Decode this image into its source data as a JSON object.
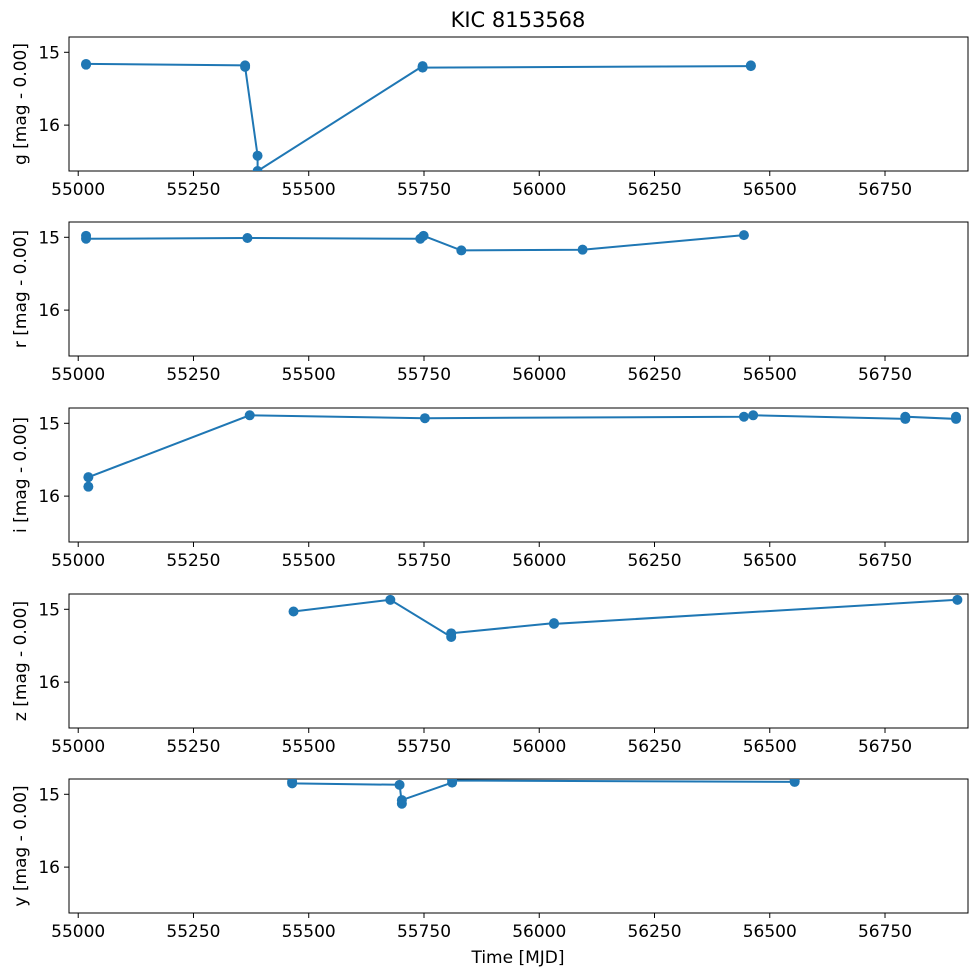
{
  "chart_data": {
    "type": "scatter",
    "title": "KIC 8153568",
    "xlabel": "Time [MJD]",
    "xlim": [
      54980,
      56930
    ],
    "xticks": [
      55000,
      55250,
      55500,
      55750,
      56000,
      56250,
      56500,
      56750
    ],
    "ylim_inverted": [
      16.63,
      14.79
    ],
    "yticks": [
      15,
      16
    ],
    "line_color": "#1f77b4",
    "marker": "circle",
    "grid": false,
    "panels": [
      {
        "band": "g",
        "ylabel": "g [mag - 0.00]",
        "points": [
          [
            55017,
            15.17
          ],
          [
            55017,
            15.16
          ],
          [
            55362,
            15.18
          ],
          [
            55362,
            15.2
          ],
          [
            55389,
            16.42
          ],
          [
            55389,
            16.63
          ],
          [
            55747,
            15.19
          ],
          [
            55747,
            15.21
          ],
          [
            56459,
            15.19
          ],
          [
            56459,
            15.18
          ]
        ]
      },
      {
        "band": "r",
        "ylabel": "r [mag - 0.00]",
        "points": [
          [
            55017,
            14.98
          ],
          [
            55017,
            15.02
          ],
          [
            55367,
            15.01
          ],
          [
            55742,
            15.02
          ],
          [
            55749,
            14.98
          ],
          [
            55831,
            15.18
          ],
          [
            56094,
            15.17
          ],
          [
            56444,
            14.97
          ]
        ]
      },
      {
        "band": "i",
        "ylabel": "i [mag - 0.00]",
        "points": [
          [
            55022,
            15.87
          ],
          [
            55022,
            15.74
          ],
          [
            55372,
            14.89
          ],
          [
            55752,
            14.93
          ],
          [
            56444,
            14.91
          ],
          [
            56464,
            14.89
          ],
          [
            56794,
            14.94
          ],
          [
            56794,
            14.91
          ],
          [
            56904,
            14.94
          ],
          [
            56904,
            14.91
          ]
        ]
      },
      {
        "band": "z",
        "ylabel": "z [mag - 0.00]",
        "points": [
          [
            55467,
            15.03
          ],
          [
            55677,
            14.87
          ],
          [
            55809,
            15.38
          ],
          [
            55809,
            15.33
          ],
          [
            56032,
            15.19
          ],
          [
            56032,
            15.2
          ],
          [
            56907,
            14.87
          ]
        ]
      },
      {
        "band": "y",
        "ylabel": "y [mag - 0.00]",
        "points": [
          [
            55464,
            14.83
          ],
          [
            55464,
            14.85
          ],
          [
            55697,
            14.87
          ],
          [
            55702,
            15.13
          ],
          [
            55702,
            15.08
          ],
          [
            55811,
            14.84
          ],
          [
            55811,
            14.81
          ],
          [
            56554,
            14.83
          ],
          [
            56554,
            14.82
          ]
        ]
      }
    ]
  }
}
